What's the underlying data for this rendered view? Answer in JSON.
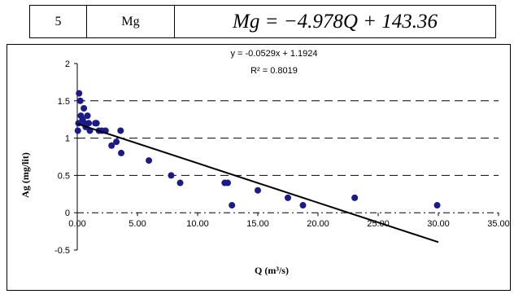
{
  "table_row": {
    "number": "5",
    "element": "Mg",
    "equation": "Mg = −4.978Q + 143.36"
  },
  "chart_data": {
    "type": "scatter",
    "title": "",
    "xlabel": "Q (m³/s)",
    "ylabel": "Ag (mg/lit)",
    "xlim": [
      0,
      35
    ],
    "ylim": [
      -0.5,
      2
    ],
    "x_ticks": [
      "0.00",
      "5.00",
      "10.00",
      "15.00",
      "20.00",
      "25.00",
      "30.00",
      "35.00"
    ],
    "y_ticks": [
      "2",
      "1.5",
      "1",
      "0.5",
      "0",
      "-0.5"
    ],
    "grid": "dashed horizontal lines",
    "legend": "none",
    "trendline": {
      "equation_label": "y = -0.0529x + 1.1924",
      "r2_label": "R² = 0.8019",
      "slope": -0.0529,
      "intercept": 1.1924,
      "x_range": [
        0,
        30
      ]
    },
    "points": [
      [
        0.05,
        1.1
      ],
      [
        0.1,
        1.2
      ],
      [
        0.15,
        1.6
      ],
      [
        0.25,
        1.5
      ],
      [
        0.3,
        1.3
      ],
      [
        0.45,
        1.25
      ],
      [
        0.55,
        1.4
      ],
      [
        0.6,
        1.2
      ],
      [
        0.7,
        1.15
      ],
      [
        0.85,
        1.3
      ],
      [
        0.95,
        1.2
      ],
      [
        1.05,
        1.1
      ],
      [
        1.5,
        1.2
      ],
      [
        1.6,
        1.2
      ],
      [
        1.8,
        1.1
      ],
      [
        2.05,
        1.1
      ],
      [
        2.35,
        1.1
      ],
      [
        2.85,
        0.9
      ],
      [
        3.25,
        0.95
      ],
      [
        3.6,
        1.1
      ],
      [
        3.65,
        0.8
      ],
      [
        5.95,
        0.7
      ],
      [
        7.8,
        0.5
      ],
      [
        8.55,
        0.4
      ],
      [
        12.25,
        0.4
      ],
      [
        12.5,
        0.4
      ],
      [
        12.85,
        0.1
      ],
      [
        15.0,
        0.3
      ],
      [
        17.5,
        0.2
      ],
      [
        18.75,
        0.1
      ],
      [
        23.05,
        0.2
      ],
      [
        29.9,
        0.1
      ]
    ],
    "colors": {
      "points": "#1a1a8c",
      "trendline": "#000000"
    }
  }
}
